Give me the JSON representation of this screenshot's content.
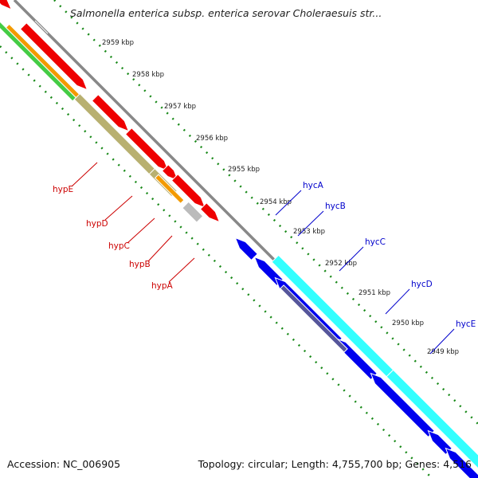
{
  "title": "Salmonella enterica subsp. enterica serovar Choleraesuis str...",
  "footer": {
    "accession": "Accession: NC_006905",
    "summary": "Topology: circular; Length: 4,755,700 bp; Genes: 4,516"
  },
  "ticks": [
    "2959 kbp",
    "2958 kbp",
    "2957 kbp",
    "2956 kbp",
    "2955 kbp",
    "2954 kbp",
    "2953 kbp",
    "2952 kbp",
    "2951 kbp",
    "2950 kbp",
    "2949 kbp"
  ],
  "genes_left": [
    "hypE",
    "hypD",
    "hypC",
    "hypB",
    "hypA"
  ],
  "genes_right": [
    "hycA",
    "hycB",
    "hycC",
    "hycD",
    "hycE"
  ],
  "colors": {
    "forward_gene": "#ee0000",
    "reverse_gene": "#0000ee",
    "backbone": "#888888",
    "tick": "#1a8a1a",
    "label_left": "#cc0000",
    "label_right": "#0000cc",
    "cds_orange": "#f39a00",
    "cds_olive": "#b8b070",
    "cds_green": "#44cc44",
    "cds_cyan": "#33ffff",
    "cds_purple": "#55559a",
    "cds_gray": "#bbbbbb"
  }
}
